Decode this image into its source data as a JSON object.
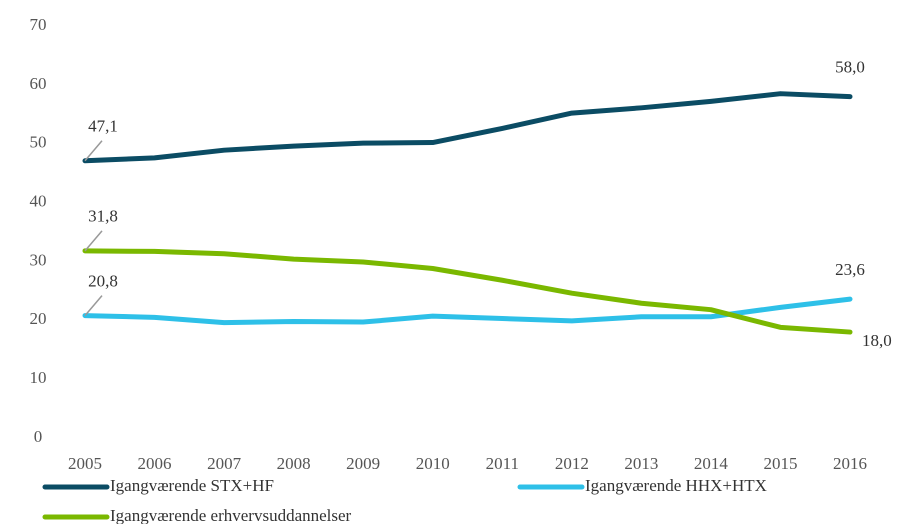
{
  "chart_data": {
    "type": "line",
    "categories": [
      "2005",
      "2006",
      "2007",
      "2008",
      "2009",
      "2010",
      "2011",
      "2012",
      "2013",
      "2014",
      "2015",
      "2016"
    ],
    "series": [
      {
        "name": "Igangværende STX+HF",
        "color": "#0b4c64",
        "values": [
          47.1,
          47.6,
          48.9,
          49.6,
          50.1,
          50.2,
          52.6,
          55.2,
          56.1,
          57.2,
          58.5,
          58.0
        ],
        "value_labels": [
          "47,1",
          null,
          null,
          null,
          null,
          null,
          null,
          null,
          null,
          null,
          null,
          "58,0"
        ]
      },
      {
        "name": "Igangværende HHX+HTX",
        "color": "#2ec0e8",
        "values": [
          20.8,
          20.5,
          19.6,
          19.8,
          19.7,
          20.7,
          20.3,
          19.9,
          20.6,
          20.6,
          22.2,
          23.6
        ],
        "value_labels": [
          "20,8",
          null,
          null,
          null,
          null,
          null,
          null,
          null,
          null,
          null,
          null,
          "23,6"
        ]
      },
      {
        "name": "Igangværende erhvervsuddannelser",
        "color": "#7ab800",
        "values": [
          31.8,
          31.7,
          31.3,
          30.4,
          29.9,
          28.8,
          26.8,
          24.6,
          22.9,
          21.8,
          18.8,
          18.0
        ],
        "value_labels": [
          "31,8",
          null,
          null,
          null,
          null,
          null,
          null,
          null,
          null,
          null,
          null,
          "18,0"
        ]
      }
    ],
    "ylim": [
      0,
      70
    ],
    "yticks": [
      0,
      10,
      20,
      30,
      40,
      50,
      60,
      70
    ],
    "grid": false,
    "legend": "bottom"
  }
}
